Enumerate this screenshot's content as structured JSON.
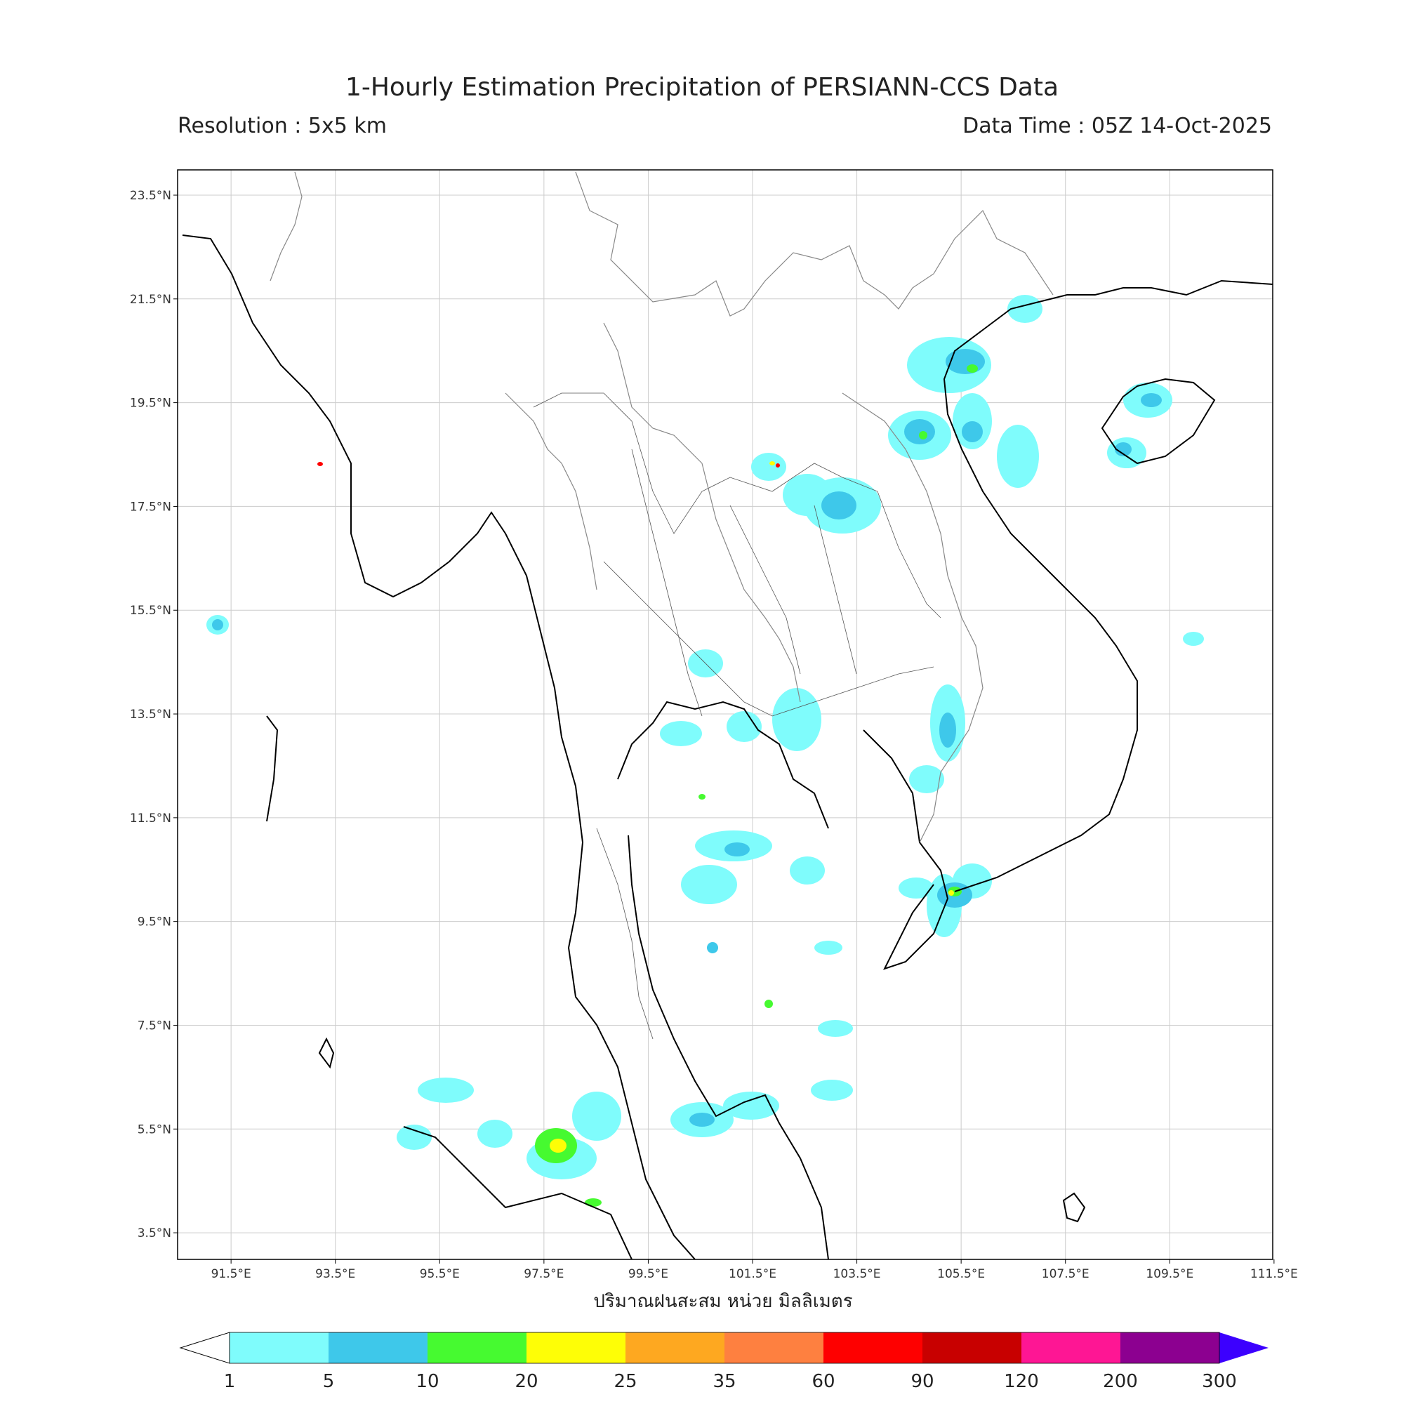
{
  "header": {
    "title": "1-Hourly Estimation Precipitation of PERSIANN-CCS Data",
    "resolution": "Resolution : 5x5 km",
    "data_time": "Data Time : 05Z 14-Oct-2025"
  },
  "map": {
    "lat_ticks": [
      "23.5°N",
      "21.5°N",
      "19.5°N",
      "17.5°N",
      "15.5°N",
      "13.5°N",
      "11.5°N",
      "9.5°N",
      "7.5°N",
      "5.5°N",
      "3.5°N"
    ],
    "lon_ticks": [
      "91.5°E",
      "93.5°E",
      "95.5°E",
      "97.5°E",
      "99.5°E",
      "101.5°E",
      "103.5°E",
      "105.5°E",
      "107.5°E",
      "109.5°E",
      "111.5°E"
    ],
    "x_axis_label": "ปริมาณฝนสะสม หน่วย มิลลิเมตร",
    "lon_range": [
      91.0,
      112.0
    ],
    "lat_range": [
      2.5,
      23.5
    ],
    "colors": {
      "coast": "#000000",
      "border": "#888888",
      "grid": "#cccccc"
    }
  },
  "colorbar": {
    "labels": [
      "1",
      "5",
      "10",
      "20",
      "25",
      "35",
      "60",
      "90",
      "120",
      "200",
      "300"
    ],
    "colors": [
      "#7ffcfc",
      "#3ec8ea",
      "#46fa30",
      "#fefe06",
      "#fea820",
      "#fe8040",
      "#fe0000",
      "#c80000",
      "#fe1694",
      "#8c0090",
      "#3c00fe"
    ],
    "under_color": "#ffffff",
    "over_color": "#3c00fe"
  }
}
